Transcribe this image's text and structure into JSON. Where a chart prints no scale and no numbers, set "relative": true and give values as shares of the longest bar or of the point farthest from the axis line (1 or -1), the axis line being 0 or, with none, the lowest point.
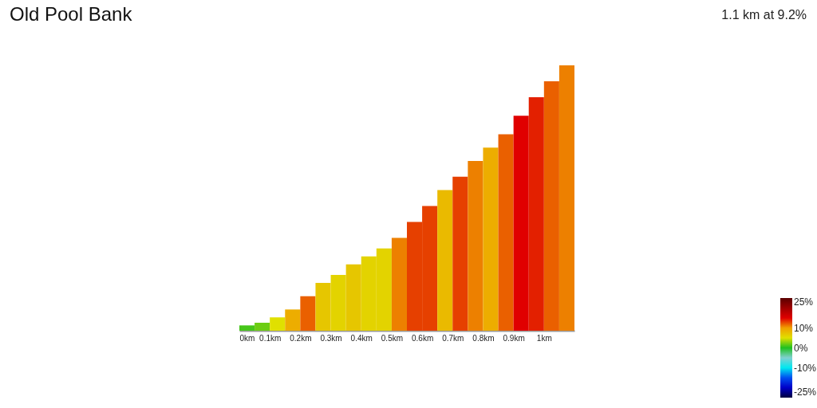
{
  "chart_data": {
    "type": "bar",
    "title": "Old Pool Bank",
    "subtitle": "1.1 km at 9.2%",
    "x": [
      0.025,
      0.075,
      0.125,
      0.175,
      0.225,
      0.275,
      0.325,
      0.375,
      0.425,
      0.475,
      0.525,
      0.575,
      0.625,
      0.675,
      0.725,
      0.775,
      0.825,
      0.875,
      0.925,
      0.975,
      1.025,
      1.075
    ],
    "values": [
      0.02,
      0.03,
      0.05,
      0.08,
      0.13,
      0.18,
      0.21,
      0.25,
      0.28,
      0.31,
      0.35,
      0.41,
      0.47,
      0.53,
      0.58,
      0.64,
      0.69,
      0.74,
      0.81,
      0.88,
      0.94,
      1
    ],
    "cvalues": [
      1,
      2,
      5,
      9,
      12,
      7,
      6,
      7,
      6,
      6,
      11,
      13,
      13,
      8,
      13,
      11,
      9,
      12,
      15,
      14,
      12,
      11
    ],
    "relative": true,
    "xlim": [
      0,
      1.1
    ],
    "xticks": [
      {
        "value": 0,
        "label": "0km"
      },
      {
        "value": 0.1,
        "label": "0.1km"
      },
      {
        "value": 0.2,
        "label": "0.2km"
      },
      {
        "value": 0.3,
        "label": "0.3km"
      },
      {
        "value": 0.4,
        "label": "0.4km"
      },
      {
        "value": 0.5,
        "label": "0.5km"
      },
      {
        "value": 0.6,
        "label": "0.6km"
      },
      {
        "value": 0.7,
        "label": "0.7km"
      },
      {
        "value": 0.8,
        "label": "0.8km"
      },
      {
        "value": 0.9,
        "label": "0.9km"
      },
      {
        "value": 1,
        "label": "1km"
      }
    ],
    "clim": [
      -25,
      25
    ],
    "cticks": [
      {
        "value": -25,
        "label": "-25%"
      },
      {
        "value": -10,
        "label": "-10%"
      },
      {
        "value": 0,
        "label": "0%"
      },
      {
        "value": 10,
        "label": "10%"
      },
      {
        "value": 25,
        "label": "25%"
      }
    ]
  }
}
